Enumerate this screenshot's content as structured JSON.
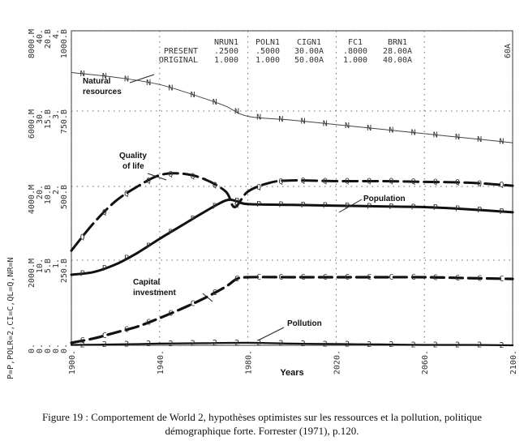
{
  "chart_data": {
    "type": "line",
    "xlabel": "Years",
    "x_ticks": [
      "1900.",
      "1940.",
      "1980.",
      "2020.",
      "2060.",
      "2100."
    ],
    "xlim": [
      1900,
      2100
    ],
    "corner_label": "60A",
    "side_label": "P=P,POLR=2,CI=C,QL=Q,NR=N",
    "y_scales": [
      {
        "P": "0.",
        "POLR": "0.",
        "CI": "0.",
        "QL": "0.",
        "NR": "0."
      },
      {
        "P": "2000.M",
        "POLR": "10.",
        "CI": "5.B",
        "QL": "1.",
        "NR": "250.B"
      },
      {
        "P": "4000.M",
        "POLR": "20.",
        "CI": "10.B",
        "QL": "2.",
        "NR": "500.B"
      },
      {
        "P": "6000.M",
        "POLR": "30.",
        "CI": "15.B",
        "QL": "3.",
        "NR": "750.B"
      },
      {
        "P": "8000.M",
        "POLR": "40.",
        "CI": "20.B",
        "QL": "4.",
        "NR": "1000.B"
      }
    ],
    "parameter_table": {
      "row_labels": [
        "PRESENT",
        "ORIGINAL"
      ],
      "columns": [
        {
          "name": "NRUN1",
          "present": ".2500",
          "original": "1.000"
        },
        {
          "name": "POLN1",
          "present": ".5000",
          "original": "1.000"
        },
        {
          "name": "CIGN1",
          "present": "30.00A",
          "original": "50.00A"
        },
        {
          "name": "FC1",
          "present": ".8000",
          "original": "1.000"
        },
        {
          "name": "BRN1",
          "present": "28.00A",
          "original": "40.00A"
        }
      ]
    },
    "series": [
      {
        "name": "Natural resources",
        "symbol": "N",
        "x": [
          1900,
          1920,
          1940,
          1960,
          1970,
          1980,
          2000,
          2020,
          2040,
          2060,
          2080,
          2100
        ],
        "y": [
          3.48,
          3.42,
          3.33,
          3.16,
          3.06,
          2.93,
          2.88,
          2.82,
          2.76,
          2.7,
          2.64,
          2.58
        ]
      },
      {
        "name": "Quality of life",
        "symbol": "Q",
        "x": [
          1900,
          1910,
          1920,
          1930,
          1940,
          1950,
          1960,
          1970,
          1974,
          1980,
          1990,
          2000,
          2020,
          2040,
          2060,
          2080,
          2100
        ],
        "y": [
          1.13,
          1.5,
          1.8,
          2.0,
          2.15,
          2.17,
          2.1,
          1.93,
          1.72,
          1.93,
          2.05,
          2.08,
          2.07,
          2.07,
          2.06,
          2.05,
          2.01
        ]
      },
      {
        "name": "Population",
        "symbol": "P",
        "x": [
          1900,
          1910,
          1920,
          1930,
          1940,
          1950,
          1960,
          1970,
          1975,
          1980,
          2000,
          2020,
          2040,
          2060,
          2080,
          2100
        ],
        "y": [
          0.83,
          0.86,
          0.95,
          1.1,
          1.29,
          1.47,
          1.65,
          1.81,
          1.8,
          1.76,
          1.75,
          1.74,
          1.73,
          1.72,
          1.69,
          1.65
        ]
      },
      {
        "name": "Capital investment",
        "symbol": "C",
        "x": [
          1900,
          1910,
          1920,
          1930,
          1940,
          1950,
          1960,
          1970,
          1975,
          1980,
          2000,
          2020,
          2040,
          2060,
          2080,
          2100
        ],
        "y": [
          0.03,
          0.08,
          0.15,
          0.22,
          0.32,
          0.43,
          0.55,
          0.69,
          0.78,
          0.8,
          0.8,
          0.8,
          0.8,
          0.8,
          0.79,
          0.78
        ]
      },
      {
        "name": "Pollution",
        "symbol": "2",
        "x": [
          1900,
          1920,
          1940,
          1960,
          1980,
          2000,
          2020,
          2040,
          2060,
          2080,
          2100
        ],
        "y": [
          0.005,
          0.01,
          0.02,
          0.025,
          0.03,
          0.02,
          0.015,
          0.01,
          0.005,
          0.005,
          0.0
        ]
      }
    ]
  },
  "caption": {
    "line1": "Figure 19 : Comportement de World 2, hypothèses optimistes sur les ressources et la pollution, politique",
    "line2": "démographique forte. Forrester (1971), p.120."
  }
}
